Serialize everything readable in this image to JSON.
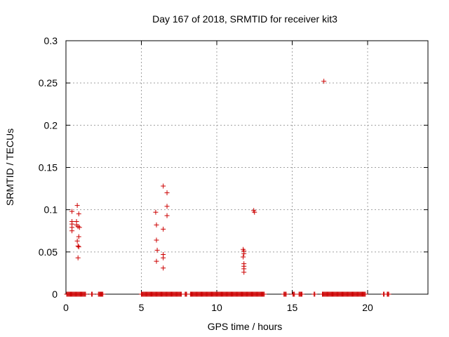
{
  "chart_data": {
    "type": "scatter",
    "title": "Day 167 of 2018, SRMTID for receiver kit3",
    "xlabel": "GPS time / hours",
    "ylabel": "SRMTID / TECUs",
    "xlim": [
      0,
      24
    ],
    "ylim": [
      0,
      0.3
    ],
    "xticks": [
      0,
      5,
      10,
      15,
      20
    ],
    "xtick_labels": [
      "0",
      "5",
      "10",
      "15",
      "20"
    ],
    "yticks": [
      0,
      0.05,
      0.1,
      0.15,
      0.2,
      0.25,
      0.3
    ],
    "ytick_labels": [
      "0",
      "0.05",
      "0.1",
      "0.15",
      "0.2",
      "0.25",
      "0.3"
    ],
    "grid": true,
    "marker": "+",
    "series_color": "#cc0000",
    "zero_ranges": [
      [
        0.05,
        1.3
      ],
      [
        1.7,
        1.75
      ],
      [
        2.15,
        2.45
      ],
      [
        5.0,
        7.65
      ],
      [
        7.9,
        8.0
      ],
      [
        8.25,
        9.9
      ],
      [
        9.95,
        13.15
      ],
      [
        14.45,
        14.6
      ],
      [
        15.05,
        15.15
      ],
      [
        15.45,
        15.65
      ],
      [
        16.45,
        16.5
      ],
      [
        17.0,
        19.85
      ],
      [
        21.05,
        21.1
      ],
      [
        21.3,
        21.4
      ]
    ],
    "zero_step": 0.05,
    "points": [
      {
        "x": 0.4,
        "y": 0.098
      },
      {
        "x": 0.4,
        "y": 0.086
      },
      {
        "x": 0.4,
        "y": 0.083
      },
      {
        "x": 0.4,
        "y": 0.079
      },
      {
        "x": 0.4,
        "y": 0.075
      },
      {
        "x": 0.7,
        "y": 0.086
      },
      {
        "x": 0.7,
        "y": 0.082
      },
      {
        "x": 0.75,
        "y": 0.105
      },
      {
        "x": 0.75,
        "y": 0.063
      },
      {
        "x": 0.8,
        "y": 0.08
      },
      {
        "x": 0.8,
        "y": 0.057
      },
      {
        "x": 0.8,
        "y": 0.043
      },
      {
        "x": 0.85,
        "y": 0.095
      },
      {
        "x": 0.85,
        "y": 0.068
      },
      {
        "x": 0.85,
        "y": 0.056
      },
      {
        "x": 0.9,
        "y": 0.079
      },
      {
        "x": 5.95,
        "y": 0.097
      },
      {
        "x": 6.0,
        "y": 0.082
      },
      {
        "x": 6.0,
        "y": 0.064
      },
      {
        "x": 6.05,
        "y": 0.052
      },
      {
        "x": 6.0,
        "y": 0.039
      },
      {
        "x": 6.45,
        "y": 0.128
      },
      {
        "x": 6.45,
        "y": 0.077
      },
      {
        "x": 6.45,
        "y": 0.047
      },
      {
        "x": 6.45,
        "y": 0.043
      },
      {
        "x": 6.45,
        "y": 0.031
      },
      {
        "x": 6.7,
        "y": 0.12
      },
      {
        "x": 6.7,
        "y": 0.104
      },
      {
        "x": 6.7,
        "y": 0.093
      },
      {
        "x": 11.75,
        "y": 0.053
      },
      {
        "x": 11.8,
        "y": 0.051
      },
      {
        "x": 11.8,
        "y": 0.048
      },
      {
        "x": 11.75,
        "y": 0.044
      },
      {
        "x": 11.8,
        "y": 0.036
      },
      {
        "x": 11.8,
        "y": 0.033
      },
      {
        "x": 11.8,
        "y": 0.03
      },
      {
        "x": 11.8,
        "y": 0.026
      },
      {
        "x": 12.45,
        "y": 0.099
      },
      {
        "x": 12.5,
        "y": 0.097
      },
      {
        "x": 17.1,
        "y": 0.252
      }
    ]
  }
}
